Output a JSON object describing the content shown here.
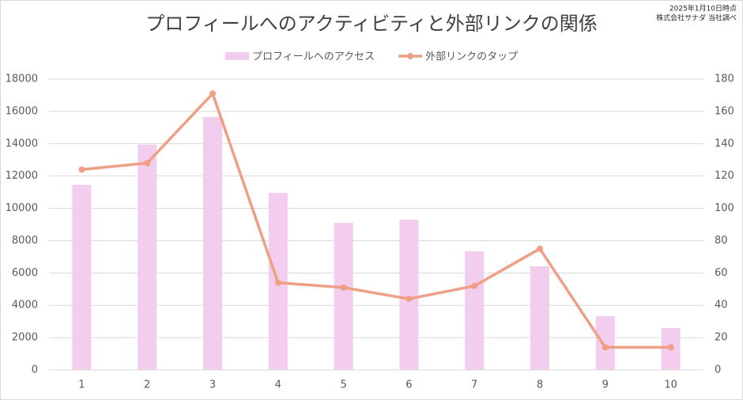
{
  "chart_data": {
    "type": "bar_line",
    "title": "プロフィールへのアクティビティと外部リンクの関係",
    "annotations": [
      "2025年1月10日時点",
      "株式会社サナダ 当社調べ"
    ],
    "categories": [
      "1",
      "2",
      "3",
      "4",
      "5",
      "6",
      "7",
      "8",
      "9",
      "10"
    ],
    "series": [
      {
        "name": "プロフィールへのアクセス",
        "type": "bar",
        "color": "#f2cdee",
        "axis": "y",
        "values": [
          11450,
          13940,
          15650,
          10960,
          9100,
          9300,
          7340,
          6410,
          3330,
          2590
        ]
      },
      {
        "name": "外部リンクのタップ",
        "type": "line",
        "color": "#ee9f85",
        "axis": "y2",
        "values": [
          124,
          128,
          171,
          54,
          51,
          44,
          52,
          75,
          14,
          14
        ]
      }
    ],
    "ylim": [
      0,
      18000
    ],
    "yticks": [
      0,
      2000,
      4000,
      6000,
      8000,
      10000,
      12000,
      14000,
      16000,
      18000
    ],
    "y2lim": [
      0,
      180
    ],
    "y2ticks": [
      0,
      20,
      40,
      60,
      80,
      100,
      120,
      140,
      160,
      180
    ],
    "grid": true
  }
}
